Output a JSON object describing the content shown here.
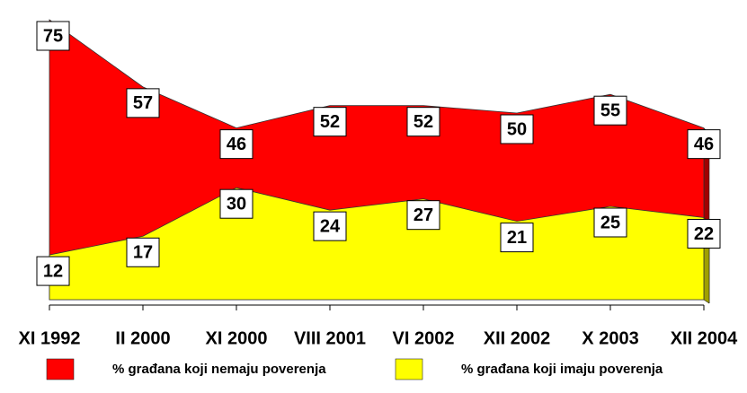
{
  "chart_data": {
    "type": "area",
    "categories": [
      "XI 1992",
      "II 2000",
      "XI 2000",
      "VIII 2001",
      "VI 2002",
      "XII 2002",
      "X 2003",
      "XII 2004"
    ],
    "series": [
      {
        "name": "% građana koji nemaju poverenja",
        "color": "#ff0000",
        "values": [
          75,
          57,
          46,
          52,
          52,
          50,
          55,
          46
        ]
      },
      {
        "name": "% građana koji imaju poverenja",
        "color": "#ffff00",
        "values": [
          12,
          17,
          30,
          24,
          27,
          21,
          25,
          22
        ]
      }
    ]
  }
}
